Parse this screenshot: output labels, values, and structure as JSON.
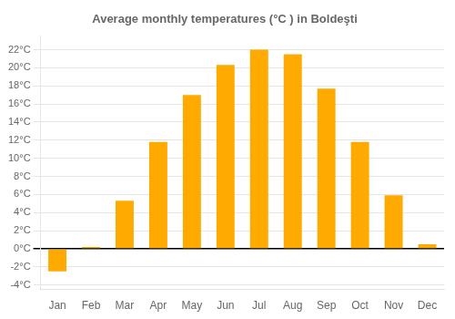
{
  "chart_data": {
    "type": "bar",
    "title": "Average monthly temperatures (°C ) in Boldeşti",
    "categories": [
      "Jan",
      "Feb",
      "Mar",
      "Apr",
      "May",
      "Jun",
      "Jul",
      "Aug",
      "Sep",
      "Oct",
      "Nov",
      "Dec"
    ],
    "values": [
      -2.5,
      0.2,
      5.3,
      11.8,
      17.0,
      20.3,
      22.0,
      21.5,
      17.7,
      11.8,
      5.9,
      0.5
    ],
    "color": "#FFAA00",
    "ylim": [
      -4.5,
      23.5
    ],
    "yticks": [
      {
        "value": -4,
        "label": "-4°C"
      },
      {
        "value": -2,
        "label": "-2°C"
      },
      {
        "value": 0,
        "label": "0°C"
      },
      {
        "value": 2,
        "label": "2°C"
      },
      {
        "value": 4,
        "label": "4°C"
      },
      {
        "value": 6,
        "label": "6°C"
      },
      {
        "value": 8,
        "label": "8°C"
      },
      {
        "value": 10,
        "label": "10°C"
      },
      {
        "value": 12,
        "label": "12°C"
      },
      {
        "value": 14,
        "label": "14°C"
      },
      {
        "value": 16,
        "label": "16°C"
      },
      {
        "value": 18,
        "label": "18°C"
      },
      {
        "value": 20,
        "label": "20°C"
      },
      {
        "value": 22,
        "label": "22°C"
      }
    ],
    "grid": true
  }
}
